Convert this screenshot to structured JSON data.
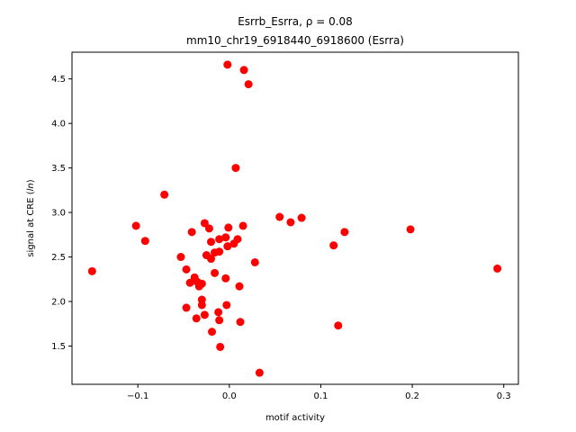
{
  "chart_data": {
    "type": "scatter",
    "title_lines": [
      "Esrrb_Esrra, ρ = 0.08",
      "mm10_chr19_6918440_6918600 (Esrra)"
    ],
    "xlabel": "motif activity",
    "ylabel_prefix": "signal at CRE (",
    "ylabel_italic": "ln",
    "ylabel_suffix": ")",
    "xlim": [
      -0.172,
      0.316
    ],
    "ylim": [
      1.07,
      4.8
    ],
    "xticks": [
      -0.1,
      0.0,
      0.1,
      0.2,
      0.3
    ],
    "xtick_labels": [
      "−0.1",
      "0.0",
      "0.1",
      "0.2",
      "0.3"
    ],
    "yticks": [
      1.5,
      2.0,
      2.5,
      3.0,
      3.5,
      4.0,
      4.5
    ],
    "ytick_labels": [
      "1.5",
      "2.0",
      "2.5",
      "3.0",
      "3.5",
      "4.0",
      "4.5"
    ],
    "grid": false,
    "marker_color": "#ff0000",
    "points": [
      {
        "x": -0.002,
        "y": 4.66
      },
      {
        "x": 0.016,
        "y": 4.6
      },
      {
        "x": 0.021,
        "y": 4.44
      },
      {
        "x": 0.007,
        "y": 3.5
      },
      {
        "x": -0.071,
        "y": 3.2
      },
      {
        "x": -0.102,
        "y": 2.85
      },
      {
        "x": -0.092,
        "y": 2.68
      },
      {
        "x": -0.15,
        "y": 2.34
      },
      {
        "x": -0.041,
        "y": 2.78
      },
      {
        "x": -0.027,
        "y": 2.88
      },
      {
        "x": -0.022,
        "y": 2.82
      },
      {
        "x": -0.001,
        "y": 2.83
      },
      {
        "x": 0.015,
        "y": 2.85
      },
      {
        "x": -0.02,
        "y": 2.67
      },
      {
        "x": -0.011,
        "y": 2.7
      },
      {
        "x": -0.004,
        "y": 2.72
      },
      {
        "x": 0.009,
        "y": 2.7
      },
      {
        "x": 0.005,
        "y": 2.65
      },
      {
        "x": -0.002,
        "y": 2.62
      },
      {
        "x": -0.053,
        "y": 2.5
      },
      {
        "x": -0.025,
        "y": 2.52
      },
      {
        "x": -0.02,
        "y": 2.48
      },
      {
        "x": -0.016,
        "y": 2.55
      },
      {
        "x": -0.011,
        "y": 2.56
      },
      {
        "x": -0.047,
        "y": 2.36
      },
      {
        "x": -0.016,
        "y": 2.32
      },
      {
        "x": -0.004,
        "y": 2.26
      },
      {
        "x": -0.038,
        "y": 2.27
      },
      {
        "x": -0.043,
        "y": 2.21
      },
      {
        "x": -0.035,
        "y": 2.22
      },
      {
        "x": -0.033,
        "y": 2.17
      },
      {
        "x": -0.03,
        "y": 2.2
      },
      {
        "x": 0.011,
        "y": 2.17
      },
      {
        "x": 0.028,
        "y": 2.44
      },
      {
        "x": -0.03,
        "y": 2.02
      },
      {
        "x": -0.03,
        "y": 1.96
      },
      {
        "x": -0.003,
        "y": 1.96
      },
      {
        "x": -0.047,
        "y": 1.93
      },
      {
        "x": -0.027,
        "y": 1.85
      },
      {
        "x": -0.012,
        "y": 1.88
      },
      {
        "x": -0.036,
        "y": 1.81
      },
      {
        "x": -0.011,
        "y": 1.79
      },
      {
        "x": 0.012,
        "y": 1.77
      },
      {
        "x": -0.019,
        "y": 1.66
      },
      {
        "x": -0.01,
        "y": 1.49
      },
      {
        "x": 0.033,
        "y": 1.2
      },
      {
        "x": 0.055,
        "y": 2.95
      },
      {
        "x": 0.067,
        "y": 2.89
      },
      {
        "x": 0.079,
        "y": 2.94
      },
      {
        "x": 0.126,
        "y": 2.78
      },
      {
        "x": 0.114,
        "y": 2.63
      },
      {
        "x": 0.119,
        "y": 1.73
      },
      {
        "x": 0.198,
        "y": 2.81
      },
      {
        "x": 0.293,
        "y": 2.37
      }
    ]
  }
}
